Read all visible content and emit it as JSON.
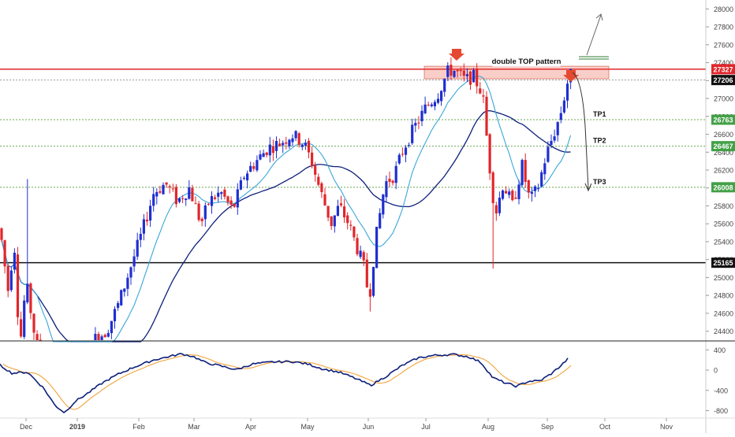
{
  "chart_data": [
    {
      "type": "candlestick",
      "panel": "price",
      "ylim": [
        24300,
        28100
      ],
      "y_ticks": [
        24400,
        24600,
        24800,
        25000,
        25200,
        25400,
        25600,
        25800,
        26000,
        26200,
        26400,
        26600,
        26800,
        27000,
        27200,
        27400,
        27600,
        27800,
        28000
      ],
      "x_labels": [
        "Dec",
        "2019",
        "Feb",
        "Mar",
        "Apr",
        "May",
        "Jun",
        "Jul",
        "Aug",
        "Sep",
        "Oct",
        "Nov"
      ],
      "grid": false,
      "series": [
        {
          "name": "Daily candles",
          "kind": "ohlc",
          "up_color": "#1f2fd0",
          "down_color": "#e0262b"
        },
        {
          "name": "",
          "kind": "moving-average",
          "color": "#0d1f7a"
        },
        {
          "name": "",
          "kind": "moving-average",
          "color": "#3aa6d8"
        }
      ],
      "price_levels": [
        {
          "value": 27327,
          "label": "27327",
          "line_color": "#e0262b",
          "badge_color": "#e0262b",
          "style": "solid"
        },
        {
          "value": 27206,
          "label": "27206",
          "line_color": "#999999",
          "badge_color": "#111111",
          "style": "dotted"
        },
        {
          "value": 26763,
          "label": "26763",
          "line_color": "#6aa84f",
          "badge_color": "#43a047",
          "style": "dotted"
        },
        {
          "value": 26467,
          "label": "26467",
          "line_color": "#6aa84f",
          "badge_color": "#43a047",
          "style": "dotted"
        },
        {
          "value": 26008,
          "label": "26008",
          "line_color": "#6aa84f",
          "badge_color": "#43a047",
          "style": "dotted"
        },
        {
          "value": 25165,
          "label": "25165",
          "line_color": "#111111",
          "badge_color": "#111111",
          "style": "solid"
        }
      ],
      "annotations": {
        "pattern_label": "double TOP pattern",
        "resistance_zone": [
          27220,
          27360
        ],
        "tp_labels": [
          "TP1",
          "TP2",
          "TP3"
        ]
      }
    },
    {
      "type": "line",
      "panel": "oscillator",
      "ylim": [
        -900,
        560
      ],
      "y_ticks": [
        -800,
        -400,
        0,
        400
      ],
      "y_tick_labels": [
        "-800",
        "-400",
        "0",
        "400"
      ],
      "series": [
        {
          "name": "",
          "color": "#0d1f7a"
        },
        {
          "name": "",
          "color": "#f2a33a"
        }
      ]
    }
  ]
}
